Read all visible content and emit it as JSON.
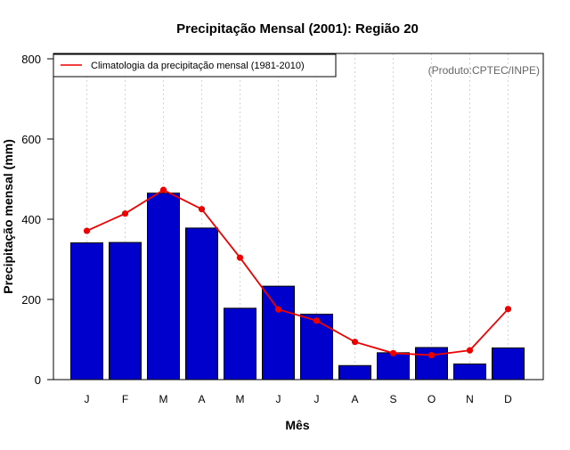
{
  "chart_data": {
    "type": "bar",
    "title": "Precipitação Mensal (2001): Região 20",
    "xlabel": "Mês",
    "ylabel": "Precipitação mensal (mm)",
    "ylim": [
      0,
      800
    ],
    "yticks": [
      0,
      200,
      400,
      600,
      800
    ],
    "categories": [
      "J",
      "F",
      "M",
      "A",
      "M",
      "J",
      "J",
      "A",
      "S",
      "O",
      "N",
      "D"
    ],
    "series": [
      {
        "name": "Precipitação mensal (2001)",
        "type": "bar",
        "color": "#0000cc",
        "values": [
          341,
          342,
          465,
          378,
          178,
          233,
          163,
          35,
          67,
          80,
          39,
          79
        ]
      },
      {
        "name": "Climatologia da precipitação mensal (1981-2010)",
        "type": "line",
        "color": "#ee0000",
        "values": [
          371,
          414,
          473,
          425,
          304,
          175,
          147,
          94,
          66,
          61,
          73,
          176
        ]
      }
    ],
    "legend": {
      "position": "top-left",
      "label": "Climatologia da precipitação mensal (1981-2010)"
    },
    "credit": "(Produto:CPTEC/INPE)",
    "grid": "vertical dotted"
  }
}
